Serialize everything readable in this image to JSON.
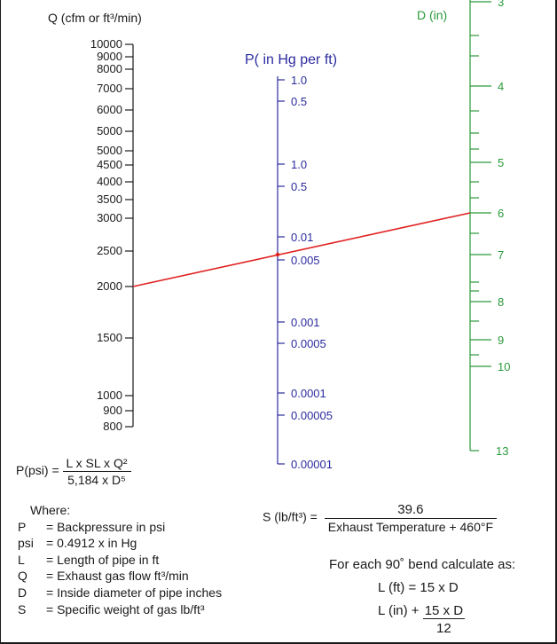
{
  "chart_data": {
    "type": "nomogram",
    "axes": {
      "q": {
        "label": "Q (cfm or  ft³/min)",
        "ticks": [
          "10000",
          "9000",
          "8000",
          "7000",
          "6000",
          "5000",
          "5000",
          "4500",
          "4000",
          "3500",
          "3000",
          "2500",
          "2000",
          "1500",
          "1000",
          "900",
          "800"
        ]
      },
      "p": {
        "label": "P( in Hg per ft)",
        "ticks": [
          "1.0",
          "0.5",
          "1.0",
          "0.5",
          "0.01",
          "0.005",
          "0.001",
          "0.0005",
          "0.0001",
          "0.00005",
          "0.00001"
        ]
      },
      "d": {
        "label": "D (in)",
        "ticks": [
          "3",
          "4",
          "5",
          "6",
          "7",
          "8",
          "9",
          "10",
          "13"
        ]
      }
    },
    "example_line": {
      "Q": 2000,
      "P": 0.005,
      "D": 6
    },
    "colors": {
      "q_axis": "#1a1a1a",
      "p_axis": "#2b2b9e",
      "d_axis": "#2a9a3a",
      "example_line": "#e02020",
      "border": "#1a1a1a"
    }
  },
  "formula": {
    "lhs": "P(psi) =",
    "numerator": "L x SL x Q²",
    "denominator": "5,184 x D⁵"
  },
  "where": {
    "heading": "Where:",
    "rows": [
      {
        "sym": "P",
        "desc": "= Backpressure in psi"
      },
      {
        "sym": "psi",
        "desc": "= 0.4912 x in Hg"
      },
      {
        "sym": "L",
        "desc": "= Length of pipe in ft"
      },
      {
        "sym": "Q",
        "desc": "= Exhaust gas flow ft³/min"
      },
      {
        "sym": "D",
        "desc": "= Inside diameter of pipe inches"
      },
      {
        "sym": "S",
        "desc": "= Specific weight of gas lb/ft³"
      }
    ]
  },
  "s_formula": {
    "lhs": "S (lb/ft³) =",
    "numerator": "39.6",
    "denominator": "Exhaust Temperature + 460°F"
  },
  "bend": {
    "heading": "For each 90˚ bend calculate as:",
    "line1": "L (ft)  = 15 x D",
    "line2_prefix": "L (in) + ",
    "line2_numerator": "15 x D",
    "line2_denominator": "12"
  }
}
